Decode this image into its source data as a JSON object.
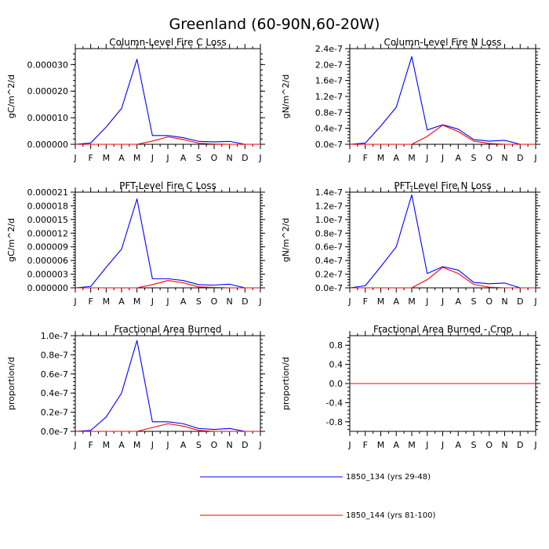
{
  "figure": {
    "title": "Greenland (60-90N,60-20W)"
  },
  "legend": {
    "position": "bottom-center",
    "entries": [
      {
        "label": "1850_134 (yrs 29-48)",
        "color": "#0000ff"
      },
      {
        "label": "1850_144 (yrs 81-100)",
        "color": "#ff0000"
      }
    ]
  },
  "chart_data": [
    {
      "type": "line",
      "title": "Column-Level Fire C Loss",
      "ylabel": "gC/m^2/d",
      "x": [
        "J",
        "F",
        "M",
        "A",
        "M",
        "J",
        "J",
        "A",
        "S",
        "O",
        "N",
        "D",
        "J"
      ],
      "ylim": [
        0,
        3.6e-05
      ],
      "yticks": [
        0,
        1e-05,
        2e-05,
        3e-05
      ],
      "ytick_labels": [
        "0.000000",
        "0.000010",
        "0.000020",
        "0.000030"
      ],
      "series": [
        {
          "name": "1850_134 (yrs 29-48)",
          "color": "#0000ff",
          "values": [
            0,
            5e-07,
            6.5e-06,
            1.35e-05,
            3.2e-05,
            3.3e-06,
            3.3e-06,
            2.5e-06,
            1.1e-06,
            9e-07,
            1.1e-06,
            0,
            0
          ]
        },
        {
          "name": "1850_144 (yrs 81-100)",
          "color": "#ff0000",
          "values": [
            0,
            0,
            0,
            0,
            0,
            1.2e-06,
            2.8e-06,
            1.8e-06,
            4e-07,
            1e-07,
            0,
            0,
            0
          ]
        }
      ]
    },
    {
      "type": "line",
      "title": "Column-Level Fire N Loss",
      "ylabel": "gN/m^2/d",
      "x": [
        "J",
        "F",
        "M",
        "A",
        "M",
        "J",
        "J",
        "A",
        "S",
        "O",
        "N",
        "D",
        "J"
      ],
      "ylim": [
        0,
        2.4e-07
      ],
      "yticks": [
        0,
        4e-08,
        8e-08,
        1.2e-07,
        1.6e-07,
        2e-07,
        2.4e-07
      ],
      "ytick_labels": [
        "0.0e-7",
        "0.4e-7",
        "0.8e-7",
        "1.2e-7",
        "1.6e-7",
        "2.0e-7",
        "2.4e-7"
      ],
      "series": [
        {
          "name": "1850_134 (yrs 29-48)",
          "color": "#0000ff",
          "values": [
            0,
            3e-09,
            4.6e-08,
            9.3e-08,
            2.2e-07,
            3.6e-08,
            4.9e-08,
            3.8e-08,
            1.2e-08,
            8e-09,
            1e-08,
            0,
            0
          ]
        },
        {
          "name": "1850_144 (yrs 81-100)",
          "color": "#ff0000",
          "values": [
            0,
            0,
            0,
            0,
            0,
            2e-08,
            4.8e-08,
            3.2e-08,
            8e-09,
            2e-09,
            0,
            0,
            0
          ]
        }
      ]
    },
    {
      "type": "line",
      "title": "PFT-Level Fire C Loss",
      "ylabel": "gC/m^2/d",
      "x": [
        "J",
        "F",
        "M",
        "A",
        "M",
        "J",
        "J",
        "A",
        "S",
        "O",
        "N",
        "D",
        "J"
      ],
      "ylim": [
        0,
        2.1e-05
      ],
      "yticks": [
        0,
        3e-06,
        6e-06,
        9e-06,
        1.2e-05,
        1.5e-05,
        1.8e-05,
        2.1e-05
      ],
      "ytick_labels": [
        "0.000000",
        "0.000003",
        "0.000006",
        "0.000009",
        "0.000012",
        "0.000015",
        "0.000018",
        "0.000021"
      ],
      "series": [
        {
          "name": "1850_134 (yrs 29-48)",
          "color": "#0000ff",
          "values": [
            0,
            3e-07,
            4.5e-06,
            8.5e-06,
            1.95e-05,
            2e-06,
            2e-06,
            1.6e-06,
            7e-07,
            6e-07,
            8e-07,
            0,
            0
          ]
        },
        {
          "name": "1850_144 (yrs 81-100)",
          "color": "#ff0000",
          "values": [
            0,
            0,
            0,
            0,
            0,
            7e-07,
            1.6e-06,
            1.1e-06,
            2e-07,
            1e-07,
            0,
            0,
            0
          ]
        }
      ]
    },
    {
      "type": "line",
      "title": "PFT-Level Fire N Loss",
      "ylabel": "gN/m^2/d",
      "x": [
        "J",
        "F",
        "M",
        "A",
        "M",
        "J",
        "J",
        "A",
        "S",
        "O",
        "N",
        "D",
        "J"
      ],
      "ylim": [
        0,
        1.4e-07
      ],
      "yticks": [
        0,
        2e-08,
        4e-08,
        6e-08,
        8e-08,
        1e-07,
        1.2e-07,
        1.4e-07
      ],
      "ytick_labels": [
        "0.0e-7",
        "0.2e-7",
        "0.4e-7",
        "0.6e-7",
        "0.8e-7",
        "1.0e-7",
        "1.2e-7",
        "1.4e-7"
      ],
      "series": [
        {
          "name": "1850_134 (yrs 29-48)",
          "color": "#0000ff",
          "values": [
            0,
            3e-09,
            3.1e-08,
            6e-08,
            1.36e-07,
            2.1e-08,
            3.1e-08,
            2.6e-08,
            8e-09,
            6e-09,
            7e-09,
            0,
            0
          ]
        },
        {
          "name": "1850_144 (yrs 81-100)",
          "color": "#ff0000",
          "values": [
            0,
            0,
            0,
            0,
            0,
            1.2e-08,
            3e-08,
            2.1e-08,
            5e-09,
            1e-09,
            0,
            0,
            0
          ]
        }
      ]
    },
    {
      "type": "line",
      "title": "Fractional Area Burned",
      "ylabel": "proportion/d",
      "x": [
        "J",
        "F",
        "M",
        "A",
        "M",
        "J",
        "J",
        "A",
        "S",
        "O",
        "N",
        "D",
        "J"
      ],
      "ylim": [
        0,
        1e-07
      ],
      "yticks": [
        0,
        2e-08,
        4e-08,
        6e-08,
        8e-08,
        1e-07
      ],
      "ytick_labels": [
        "0.0e-7",
        "0.2e-7",
        "0.4e-7",
        "0.6e-7",
        "0.8e-7",
        "1.0e-7"
      ],
      "series": [
        {
          "name": "1850_134 (yrs 29-48)",
          "color": "#0000ff",
          "values": [
            0,
            1e-09,
            1.5e-08,
            4e-08,
            9.5e-08,
            1e-08,
            1e-08,
            8e-09,
            3e-09,
            2e-09,
            3e-09,
            0,
            0
          ]
        },
        {
          "name": "1850_144 (yrs 81-100)",
          "color": "#ff0000",
          "values": [
            0,
            0,
            0,
            0,
            0,
            4e-09,
            8e-09,
            5.5e-09,
            1e-09,
            0,
            0,
            0,
            0
          ]
        }
      ]
    },
    {
      "type": "line",
      "title": "Fractional Area Burned - Crop",
      "ylabel": "proportion/d",
      "x": [
        "J",
        "F",
        "M",
        "A",
        "M",
        "J",
        "J",
        "A",
        "S",
        "O",
        "N",
        "D",
        "J"
      ],
      "ylim": [
        -1.0,
        1.0
      ],
      "yticks": [
        -0.8,
        -0.4,
        0.0,
        0.4,
        0.8
      ],
      "ytick_labels": [
        "-0.8",
        "-0.4",
        "0.0",
        "0.4",
        "0.8"
      ],
      "series": [
        {
          "name": "1850_134 (yrs 29-48)",
          "color": "#0000ff",
          "values": [
            0,
            0,
            0,
            0,
            0,
            0,
            0,
            0,
            0,
            0,
            0,
            0,
            0
          ]
        },
        {
          "name": "1850_144 (yrs 81-100)",
          "color": "#ff0000",
          "values": [
            0,
            0,
            0,
            0,
            0,
            0,
            0,
            0,
            0,
            0,
            0,
            0,
            0
          ]
        }
      ]
    }
  ]
}
